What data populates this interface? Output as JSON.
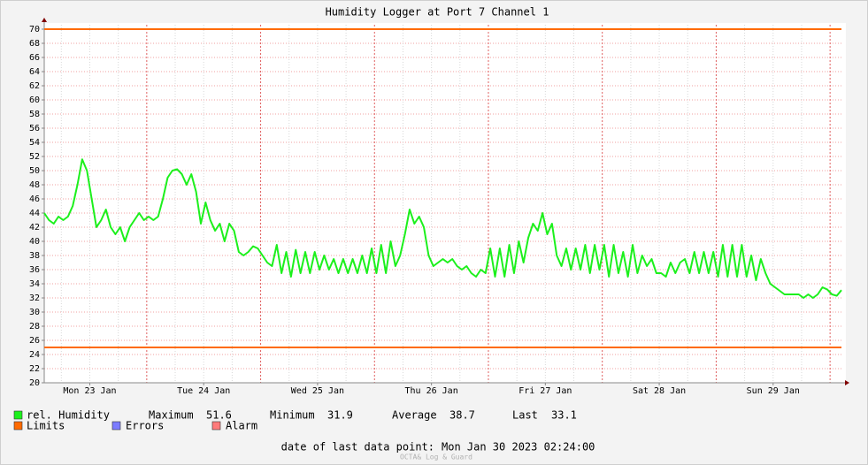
{
  "chart_data": {
    "type": "line",
    "title": "Humidity Logger at Port 7 Channel 1",
    "xlim": [
      0,
      168
    ],
    "xticks": [
      {
        "value": 9.6,
        "label": "Mon 23 Jan"
      },
      {
        "value": 33.6,
        "label": "Tue 24 Jan"
      },
      {
        "value": 57.6,
        "label": "Wed 25 Jan"
      },
      {
        "value": 81.6,
        "label": "Thu 26 Jan"
      },
      {
        "value": 105.6,
        "label": "Fri 27 Jan"
      },
      {
        "value": 129.6,
        "label": "Sat 28 Jan"
      },
      {
        "value": 153.6,
        "label": "Sun 29 Jan"
      }
    ],
    "ylim": [
      20,
      70
    ],
    "yticks": [
      20,
      22,
      24,
      26,
      28,
      30,
      32,
      34,
      36,
      38,
      40,
      42,
      44,
      46,
      48,
      50,
      52,
      54,
      56,
      58,
      60,
      62,
      64,
      66,
      68,
      70
    ],
    "grid": true,
    "series": [
      {
        "name": "rel. Humidity",
        "color": "#1cf01c",
        "values": [
          44,
          43,
          42.5,
          43.5,
          43,
          43.5,
          45,
          48,
          51.6,
          50,
          46,
          42,
          43,
          44.5,
          42,
          41,
          42,
          40,
          42,
          43,
          44,
          43,
          43.5,
          43,
          43.5,
          46,
          49,
          50,
          50.2,
          49.5,
          48,
          49.5,
          47,
          42.5,
          45.5,
          43,
          41.5,
          42.5,
          40,
          42.5,
          41.5,
          38.5,
          38,
          38.5,
          39.3,
          39,
          38,
          37,
          36.5,
          39.5,
          35.5,
          38.5,
          35,
          38.8,
          35.5,
          38.5,
          35.5,
          38.5,
          36,
          38,
          36,
          37.5,
          35.5,
          37.5,
          35.5,
          37.5,
          35.5,
          38,
          35.5,
          39,
          35.5,
          39.5,
          35.5,
          40,
          36.5,
          38,
          41,
          44.5,
          42.5,
          43.5,
          42,
          38,
          36.5,
          37,
          37.5,
          37,
          37.5,
          36.5,
          36,
          36.5,
          35.5,
          35,
          36,
          35.5,
          39,
          35,
          39,
          35,
          39.5,
          35.5,
          40,
          37,
          40.5,
          42.5,
          41.5,
          44,
          41,
          42.5,
          38,
          36.5,
          39,
          36,
          39,
          36,
          39.5,
          35.5,
          39.5,
          36,
          39.5,
          35,
          39.5,
          35.5,
          38.5,
          35,
          39.5,
          35.5,
          38,
          36.5,
          37.5,
          35.5,
          35.5,
          35,
          37,
          35.5,
          37,
          37.5,
          35.5,
          38.5,
          35.5,
          38.5,
          35.5,
          38.5,
          35,
          39.5,
          35,
          39.5,
          35,
          39.5,
          35,
          38,
          34.5,
          37.5,
          35.5,
          34,
          33.5,
          33,
          32.5,
          32.5,
          32.5,
          32.5,
          32,
          32.5,
          32,
          32.5,
          33.5,
          33.2,
          32.5,
          32.3,
          33.1
        ]
      }
    ],
    "limits": {
      "name": "Limits",
      "color": "#ff6a00",
      "values": [
        70,
        25
      ]
    },
    "legend_extra": [
      {
        "name": "Errors",
        "color": "#7b7bff"
      },
      {
        "name": "Alarm",
        "color": "#ff7b7b"
      }
    ],
    "stats": [
      {
        "label": "Maximum",
        "value": 51.6
      },
      {
        "label": "Minimum",
        "value": 31.9
      },
      {
        "label": "Average",
        "value": 38.7
      },
      {
        "label": "Last",
        "value": 33.1
      }
    ],
    "footer": {
      "label": "date of last data point:",
      "value": "Mon Jan 30 2023 02:24:00"
    },
    "credit": "OCTA& Log & Guard"
  }
}
